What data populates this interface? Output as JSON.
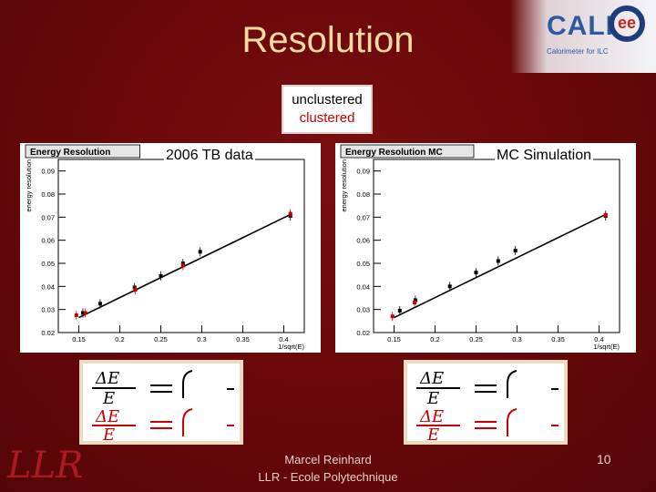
{
  "slide": {
    "title": "Resolution",
    "legend": {
      "unclustered": "unclustered",
      "clustered": "clustered"
    },
    "author_line1": "Marcel Reinhard",
    "author_line2": "LLR - Ecole Polytechnique",
    "page_number": "10",
    "logo_text": "CALI",
    "logo_ee": "ee",
    "logo_subtitle": "Calorimeter for ILC",
    "llr_logo_text": "LLR"
  },
  "chart_data": [
    {
      "type": "scatter",
      "label": "2006 TB data",
      "title": "Energy Resolution",
      "xlabel": "1/sqrt(E)",
      "ylabel": "energy resolution",
      "xlim": [
        0.125,
        0.425
      ],
      "ylim": [
        0.02,
        0.095
      ],
      "xticks": [
        "0.15",
        "0.2",
        "0.25",
        "0.3",
        "0.35",
        "0.4"
      ],
      "yticks": [
        "0.02",
        "0.03",
        "0.04",
        "0.05",
        "0.06",
        "0.07",
        "0.08",
        "0.09"
      ],
      "fit": [
        [
          0.15,
          0.0265
        ],
        [
          0.41,
          0.0715
        ]
      ],
      "series": [
        {
          "color": "#000000",
          "x": [
            0.155,
            0.176,
            0.218,
            0.25,
            0.277,
            0.298,
            0.408
          ],
          "y": [
            0.0285,
            0.0325,
            0.0395,
            0.0445,
            0.05,
            0.055,
            0.0705
          ]
        },
        {
          "color": "#cc0000",
          "x": [
            0.147,
            0.158,
            0.219,
            0.277,
            0.408
          ],
          "y": [
            0.0275,
            0.0285,
            0.0385,
            0.049,
            0.0715
          ]
        }
      ]
    },
    {
      "type": "scatter",
      "label": "MC Simulation",
      "title": "Energy Resolution MC",
      "xlabel": "1/sqrt(E)",
      "ylabel": "energy resolution",
      "xlim": [
        0.125,
        0.425
      ],
      "ylim": [
        0.02,
        0.095
      ],
      "xticks": [
        "0.15",
        "0.2",
        "0.25",
        "0.3",
        "0.35",
        "0.4"
      ],
      "yticks": [
        "0.02",
        "0.03",
        "0.04",
        "0.05",
        "0.06",
        "0.07",
        "0.08",
        "0.09"
      ],
      "fit": [
        [
          0.15,
          0.0265
        ],
        [
          0.41,
          0.0715
        ]
      ],
      "series": [
        {
          "color": "#000000",
          "x": [
            0.157,
            0.176,
            0.218,
            0.25,
            0.277,
            0.298,
            0.408
          ],
          "y": [
            0.0295,
            0.034,
            0.04,
            0.046,
            0.051,
            0.0555,
            0.0705
          ]
        },
        {
          "color": "#cc0000",
          "x": [
            0.148,
            0.175,
            0.408
          ],
          "y": [
            0.027,
            0.033,
            0.071
          ]
        }
      ]
    }
  ]
}
